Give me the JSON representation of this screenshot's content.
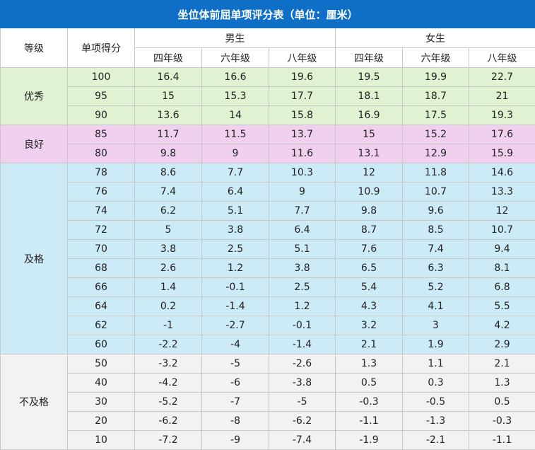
{
  "title": "坐位体前屈单项评分表（单位：厘米）",
  "headers": {
    "grade": "等级",
    "score": "单项得分",
    "male": "男生",
    "female": "女生",
    "sub": [
      "四年级",
      "六年级",
      "八年级",
      "四年级",
      "六年级",
      "八年级"
    ]
  },
  "colors": {
    "title_bg": "#0f6fc6",
    "excellent": "#e1f2d2",
    "good": "#f0d0ee",
    "pass": "#cdeaf7",
    "fail": "#f2f2f2"
  },
  "groups": [
    {
      "label": "优秀",
      "rows": [
        {
          "score": "100",
          "values": [
            "16.4",
            "16.6",
            "19.6",
            "19.5",
            "19.9",
            "22.7"
          ]
        },
        {
          "score": "95",
          "values": [
            "15",
            "15.3",
            "17.7",
            "18.1",
            "18.7",
            "21"
          ]
        },
        {
          "score": "90",
          "values": [
            "13.6",
            "14",
            "15.8",
            "16.9",
            "17.5",
            "19.3"
          ]
        }
      ]
    },
    {
      "label": "良好",
      "rows": [
        {
          "score": "85",
          "values": [
            "11.7",
            "11.5",
            "13.7",
            "15",
            "15.2",
            "17.6"
          ]
        },
        {
          "score": "80",
          "values": [
            "9.8",
            "9",
            "11.6",
            "13.1",
            "12.9",
            "15.9"
          ]
        }
      ]
    },
    {
      "label": "及格",
      "rows": [
        {
          "score": "78",
          "values": [
            "8.6",
            "7.7",
            "10.3",
            "12",
            "11.8",
            "14.6"
          ]
        },
        {
          "score": "76",
          "values": [
            "7.4",
            "6.4",
            "9",
            "10.9",
            "10.7",
            "13.3"
          ]
        },
        {
          "score": "74",
          "values": [
            "6.2",
            "5.1",
            "7.7",
            "9.8",
            "9.6",
            "12"
          ]
        },
        {
          "score": "72",
          "values": [
            "5",
            "3.8",
            "6.4",
            "8.7",
            "8.5",
            "10.7"
          ]
        },
        {
          "score": "70",
          "values": [
            "3.8",
            "2.5",
            "5.1",
            "7.6",
            "7.4",
            "9.4"
          ]
        },
        {
          "score": "68",
          "values": [
            "2.6",
            "1.2",
            "3.8",
            "6.5",
            "6.3",
            "8.1"
          ]
        },
        {
          "score": "66",
          "values": [
            "1.4",
            "-0.1",
            "2.5",
            "5.4",
            "5.2",
            "6.8"
          ]
        },
        {
          "score": "64",
          "values": [
            "0.2",
            "-1.4",
            "1.2",
            "4.3",
            "4.1",
            "5.5"
          ]
        },
        {
          "score": "62",
          "values": [
            "-1",
            "-2.7",
            "-0.1",
            "3.2",
            "3",
            "4.2"
          ]
        },
        {
          "score": "60",
          "values": [
            "-2.2",
            "-4",
            "-1.4",
            "2.1",
            "1.9",
            "2.9"
          ]
        }
      ]
    },
    {
      "label": "不及格",
      "rows": [
        {
          "score": "50",
          "values": [
            "-3.2",
            "-5",
            "-2.6",
            "1.3",
            "1.1",
            "2.1"
          ]
        },
        {
          "score": "40",
          "values": [
            "-4.2",
            "-6",
            "-3.8",
            "0.5",
            "0.3",
            "1.3"
          ]
        },
        {
          "score": "30",
          "values": [
            "-5.2",
            "-7",
            "-5",
            "-0.3",
            "-0.5",
            "0.5"
          ]
        },
        {
          "score": "20",
          "values": [
            "-6.2",
            "-8",
            "-6.2",
            "-1.1",
            "-1.3",
            "-0.3"
          ]
        },
        {
          "score": "10",
          "values": [
            "-7.2",
            "-9",
            "-7.4",
            "-1.9",
            "-2.1",
            "-1.1"
          ]
        }
      ]
    }
  ]
}
